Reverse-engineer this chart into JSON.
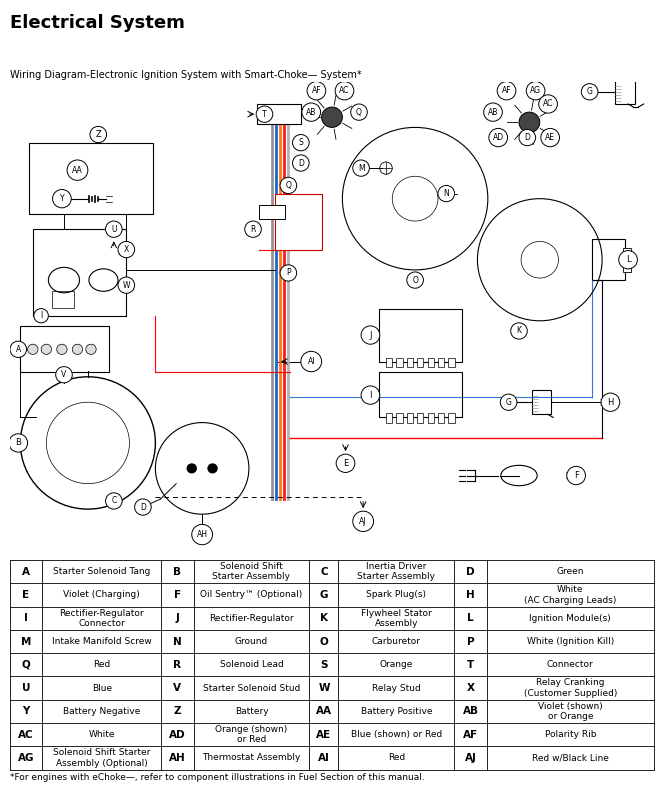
{
  "title": "Electrical System",
  "subtitle": "Wiring Diagram-Electronic Ignition System with Smart-Choke— System*",
  "footnote": "*For engines with eChoke—, refer to component illustrations in Fuel Section of this manual.",
  "table_data": [
    [
      "A",
      "Starter Solenoid Tang",
      "B",
      "Solenoid Shift\nStarter Assembly",
      "C",
      "Inertia Driver\nStarter Assembly",
      "D",
      "Green"
    ],
    [
      "E",
      "Violet (Charging)",
      "F",
      "Oil Sentry™ (Optional)",
      "G",
      "Spark Plug(s)",
      "H",
      "White\n(AC Charging Leads)"
    ],
    [
      "I",
      "Rectifier-Regulator\nConnector",
      "J",
      "Rectifier-Regulator",
      "K",
      "Flywheel Stator\nAssembly",
      "L",
      "Ignition Module(s)"
    ],
    [
      "M",
      "Intake Manifold Screw",
      "N",
      "Ground",
      "O",
      "Carburetor",
      "P",
      "White (Ignition Kill)"
    ],
    [
      "Q",
      "Red",
      "R",
      "Solenoid Lead",
      "S",
      "Orange",
      "T",
      "Connector"
    ],
    [
      "U",
      "Blue",
      "V",
      "Starter Solenoid Stud",
      "W",
      "Relay Stud",
      "X",
      "Relay Cranking\n(Customer Supplied)"
    ],
    [
      "Y",
      "Battery Negative",
      "Z",
      "Battery",
      "AA",
      "Battery Positive",
      "AB",
      "Violet (shown)\nor Orange"
    ],
    [
      "AC",
      "White",
      "AD",
      "Orange (shown)\nor Red",
      "AE",
      "Blue (shown) or Red",
      "AF",
      "Polarity Rib"
    ],
    [
      "AG",
      "Solenoid Shift Starter\nAssembly (Optional)",
      "AH",
      "Thermostat Assembly",
      "AI",
      "Red",
      "AJ",
      "Red w/Black Line"
    ]
  ]
}
